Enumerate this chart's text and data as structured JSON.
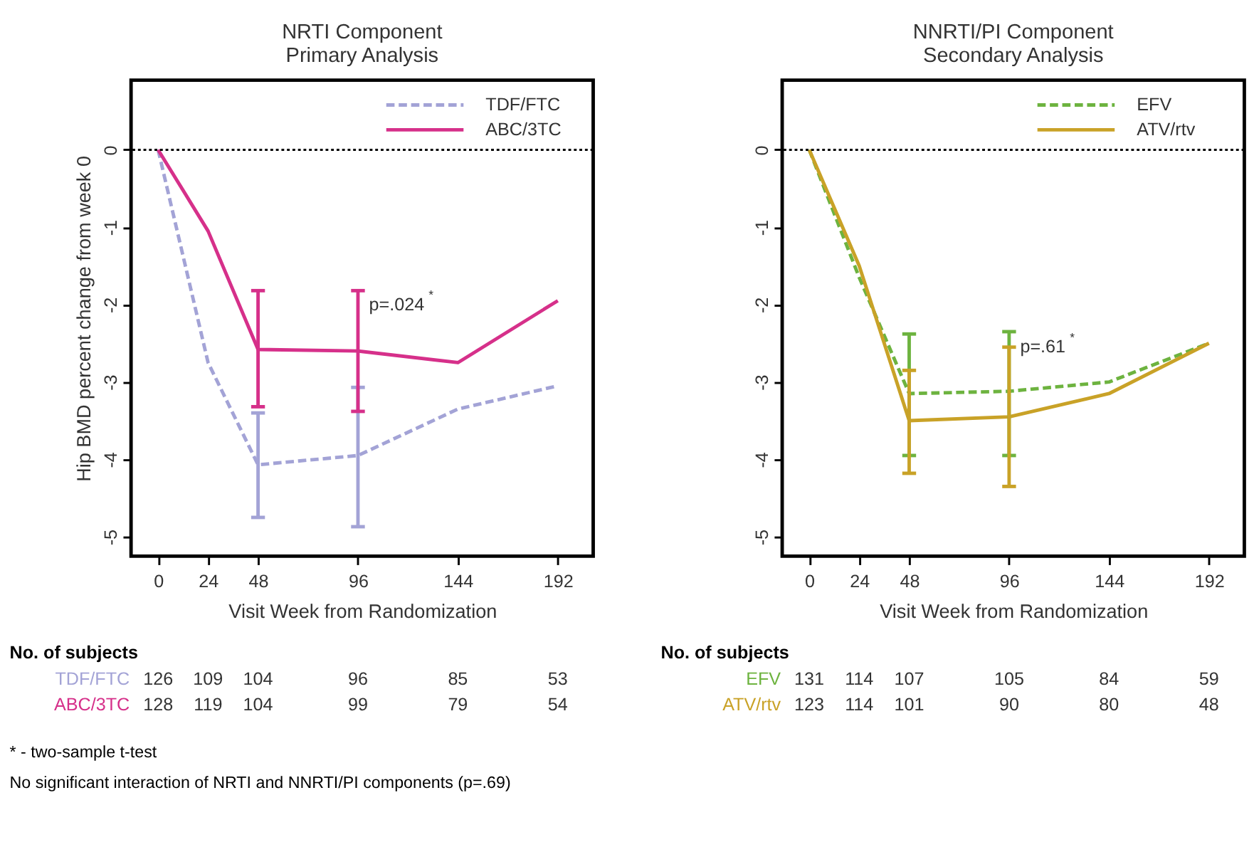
{
  "chart_data": [
    {
      "type": "line",
      "title": "NRTI Component",
      "subtitle": "Primary Analysis",
      "xlabel": "Visit Week from Randomization",
      "ylabel": "Hip BMD percent change from week 0",
      "x": [
        0,
        24,
        48,
        96,
        144,
        192
      ],
      "xlim": [
        -13,
        209
      ],
      "xticks": [
        0,
        24,
        48,
        96,
        144,
        192
      ],
      "ylim": [
        -5.25,
        0.9
      ],
      "yticks": [
        0,
        -1,
        -2,
        -3,
        -4,
        -5
      ],
      "grid": false,
      "legend": "top right",
      "series": [
        {
          "name": "TDF/FTC",
          "color": "#a3a3d6",
          "line_style": "dashed",
          "values": [
            0,
            -2.75,
            -4.07,
            -3.95,
            -3.35,
            -3.05
          ],
          "errors": [
            null,
            null,
            [
              -4.75,
              -3.4
            ],
            [
              -4.87,
              -3.07
            ],
            null,
            null
          ]
        },
        {
          "name": "ABC/3TC",
          "color": "#d6308a",
          "line_style": "solid",
          "values": [
            0,
            -1.05,
            -2.58,
            -2.6,
            -2.75,
            -1.95
          ],
          "errors": [
            null,
            null,
            [
              -3.32,
              -1.82
            ],
            [
              -3.38,
              -1.82
            ],
            null,
            null
          ]
        }
      ],
      "ref_lines": [
        {
          "axis": "y",
          "value": 0,
          "color": "#000000",
          "line_style": "dotted"
        }
      ],
      "annotations": [
        {
          "text": "p=.024$^{*}$",
          "x": 96,
          "y": -2.0
        },
        "No. of subjects",
        "* - two-sample t-test",
        "No significant interaction of NRTI and NNRTI/PI components (p=.69)",
        "126",
        "109",
        "104",
        "96",
        "85",
        "53",
        "128",
        "119",
        "104",
        "99",
        "79",
        "54"
      ]
    },
    {
      "type": "line",
      "title": "NNRTI/PI Component",
      "subtitle": "Secondary Analysis",
      "xlabel": "Visit Week from Randomization",
      "x": [
        0,
        24,
        48,
        96,
        144,
        192
      ],
      "xlim": [
        -13,
        209
      ],
      "xticks": [
        0,
        24,
        48,
        96,
        144,
        192
      ],
      "ylim": [
        -5.25,
        0.9
      ],
      "yticks": [
        0,
        -1,
        -2,
        -3,
        -4,
        -5
      ],
      "grid": false,
      "legend": "top right",
      "series": [
        {
          "name": "EFV",
          "color": "#6db33f",
          "line_style": "dashed",
          "values": [
            0,
            -1.65,
            -3.15,
            -3.12,
            -3.0,
            -2.5
          ],
          "errors": [
            null,
            null,
            [
              -3.95,
              -2.38
            ],
            [
              -3.95,
              -2.35
            ],
            null,
            null
          ]
        },
        {
          "name": "ATV/rtv",
          "color": "#c9a227",
          "line_style": "solid",
          "values": [
            0,
            -1.5,
            -3.5,
            -3.45,
            -3.15,
            -2.5
          ],
          "errors": [
            null,
            null,
            [
              -4.18,
              -2.85
            ],
            [
              -4.35,
              -2.55
            ],
            null,
            null
          ]
        }
      ],
      "ref_lines": [
        {
          "axis": "y",
          "value": 0,
          "color": "#000000",
          "line_style": "dotted"
        }
      ],
      "annotations": [
        {
          "text": "p=.61$^{*}$",
          "x": 96,
          "y": -2.55
        },
        "No. of subjects",
        "131",
        "114",
        "107",
        "105",
        "84",
        "59",
        "123",
        "114",
        "101",
        "90",
        "80",
        "48"
      ]
    }
  ]
}
